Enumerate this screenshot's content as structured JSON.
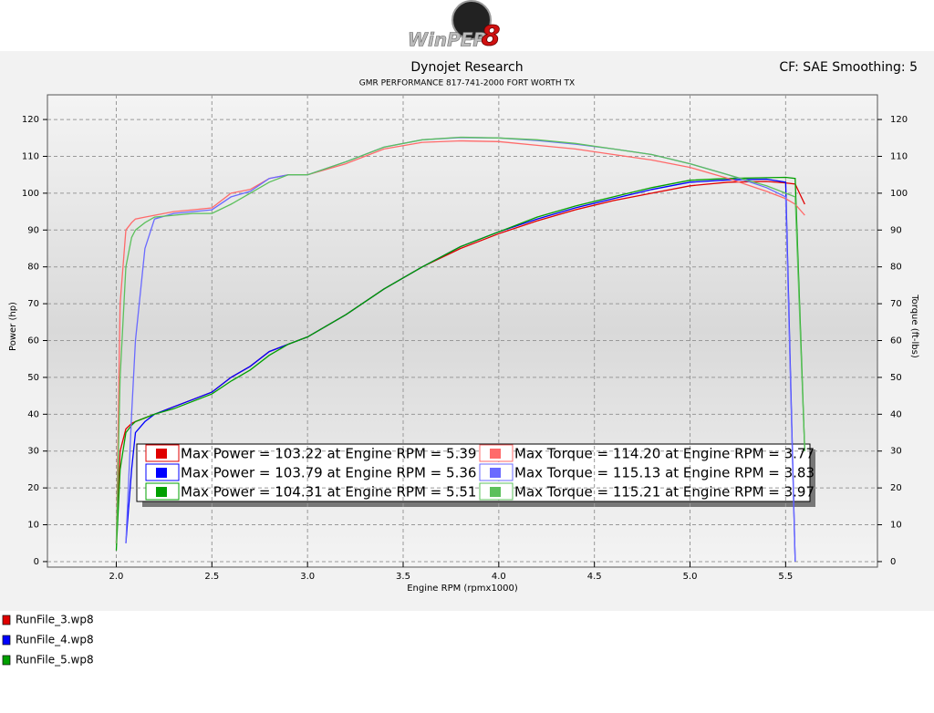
{
  "chart_data": {
    "type": "line",
    "logo": "WinPEP",
    "logo_number": "8",
    "title": "Dynojet Research",
    "subtitle": "GMR PERFORMANCE 817-741-2000  FORT WORTH TX",
    "corner_note": "CF: SAE Smoothing: 5",
    "xlabel": "Engine RPM (rpmx1000)",
    "ylabel": "Power (hp)",
    "y2label": "Torque (ft-lbs)",
    "xlim": [
      1.64,
      5.98
    ],
    "ylim": [
      -1.5,
      126.7
    ],
    "y2lim": [
      -1.5,
      126.7
    ],
    "xticks": [
      {
        "value": 2,
        "label": "2.0"
      },
      2.5,
      {
        "value": 3,
        "label": "3.0"
      },
      3.5,
      {
        "value": 4,
        "label": "4.0"
      },
      4.5,
      {
        "value": 5,
        "label": "5.0"
      },
      5.5
    ],
    "yticks": [
      0,
      10,
      20,
      30,
      40,
      50,
      60,
      70,
      80,
      90,
      100,
      110,
      120
    ],
    "y2ticks": [
      0,
      10,
      20,
      30,
      40,
      50,
      60,
      70,
      80,
      90,
      100,
      110,
      120
    ],
    "grid": true,
    "x": [
      2.0,
      2.02,
      2.05,
      2.08,
      2.1,
      2.15,
      2.2,
      2.3,
      2.4,
      2.5,
      2.6,
      2.7,
      2.8,
      2.9,
      3.0,
      3.2,
      3.4,
      3.6,
      3.8,
      4.0,
      4.2,
      4.4,
      4.6,
      4.8,
      5.0,
      5.2,
      5.4,
      5.5,
      5.55,
      5.6
    ],
    "series": [
      {
        "color": "#e00000",
        "values": [
          5,
          30,
          36,
          37.5,
          38,
          39,
          40,
          42,
          44,
          46,
          50,
          53,
          57,
          59,
          61,
          67,
          74,
          80,
          85,
          89,
          92.5,
          95.5,
          98,
          100,
          102,
          103,
          103.2,
          102.8,
          102.5,
          97
        ]
      },
      {
        "color": "#0000ff",
        "values": [
          null,
          null,
          5,
          25,
          35,
          38,
          40,
          42,
          44,
          46,
          50,
          53,
          57,
          59,
          61,
          67,
          74,
          80,
          85.5,
          89.5,
          93,
          96,
          98.5,
          101,
          103,
          103.6,
          103.8,
          103,
          0,
          null
        ]
      },
      {
        "color": "#00a000",
        "values": [
          3,
          25,
          35,
          37,
          38,
          39,
          40,
          41.5,
          43.5,
          45.5,
          49,
          52,
          56,
          59,
          61,
          67,
          74,
          80,
          85.5,
          89.5,
          93.5,
          96.5,
          99,
          101.5,
          103.5,
          104,
          104.2,
          104.3,
          104,
          30
        ]
      },
      {
        "color": "#ff6a6a",
        "axis": "y2",
        "values": [
          5,
          70,
          90,
          92,
          93,
          93.5,
          94,
          95,
          95.5,
          96,
          100,
          101,
          104,
          105,
          105,
          108,
          112,
          113.8,
          114.2,
          114,
          113,
          112,
          110.5,
          109,
          107,
          104,
          100.5,
          98.5,
          97,
          94
        ]
      },
      {
        "color": "#6a6aff",
        "axis": "y2",
        "values": [
          null,
          null,
          5,
          40,
          60,
          85,
          93,
          94.5,
          95,
          95.5,
          99,
          100.5,
          104,
          105,
          105,
          108.5,
          112.5,
          114.5,
          115.1,
          115,
          114.3,
          113.3,
          112,
          110.5,
          108,
          105,
          101.5,
          99,
          0,
          null
        ]
      },
      {
        "color": "#5cc05c",
        "axis": "y2",
        "values": [
          5,
          50,
          80,
          88,
          90,
          92,
          93.5,
          94,
          94.5,
          94.5,
          97,
          100,
          103,
          105,
          105,
          108.5,
          112.5,
          114.5,
          115.2,
          115,
          114.5,
          113.5,
          112,
          110.5,
          108,
          105,
          102,
          100,
          99,
          30
        ]
      }
    ],
    "annotations": [
      "Max Power = 103.22 at Engine RPM = 5.39",
      "Max Power = 103.79 at Engine RPM = 5.36",
      "Max Power = 104.31 at Engine RPM = 5.51",
      "Max Torque = 114.20 at Engine RPM = 3.77",
      "Max Torque = 115.13 at Engine RPM = 3.83",
      "Max Torque = 115.21 at Engine RPM = 3.97"
    ],
    "legend": [
      {
        "name": "RunFile_3.wp8",
        "color": "#e00000"
      },
      {
        "name": "RunFile_4.wp8",
        "color": "#0000ff"
      },
      {
        "name": "RunFile_5.wp8",
        "color": "#00a000"
      }
    ]
  }
}
